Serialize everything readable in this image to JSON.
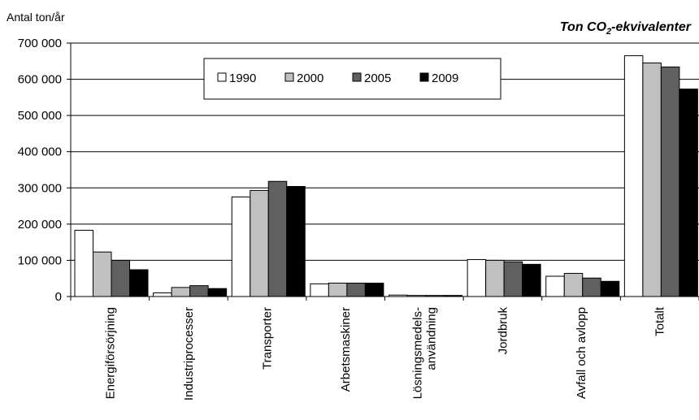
{
  "chart_data": {
    "type": "bar",
    "title": "Ton CO",
    "title_sub": "2",
    "title_rest": "-ekvivalenter",
    "ylabel": "Antal  ton/år",
    "xlabel": "",
    "ylim": [
      0,
      700000
    ],
    "yticks": [
      "0",
      "100 000",
      "200 000",
      "300 000",
      "400 000",
      "500 000",
      "600 000",
      "700 000"
    ],
    "grid": true,
    "legend_position": "top-center",
    "categories": [
      [
        "Energiförsörjning"
      ],
      [
        "Industriprocesser"
      ],
      [
        "Transporter"
      ],
      [
        "Arbetsmaskiner"
      ],
      [
        "Lösningsmedels-",
        "användning"
      ],
      [
        "Jordbruk"
      ],
      [
        "Avfall och avlopp"
      ],
      [
        "Totalt"
      ]
    ],
    "series": [
      {
        "name": "1990",
        "color": "#ffffff",
        "values": [
          183000,
          10000,
          275000,
          35000,
          4000,
          102000,
          56000,
          665000
        ]
      },
      {
        "name": "2000",
        "color": "#c0c0c0",
        "values": [
          123000,
          25000,
          293000,
          37000,
          3000,
          100000,
          64000,
          645000
        ]
      },
      {
        "name": "2005",
        "color": "#606060",
        "values": [
          100000,
          30000,
          318000,
          37000,
          3000,
          96000,
          51000,
          634000
        ]
      },
      {
        "name": "2009",
        "color": "#000000",
        "values": [
          74000,
          22000,
          304000,
          37000,
          3000,
          89000,
          42000,
          573000
        ]
      }
    ]
  }
}
